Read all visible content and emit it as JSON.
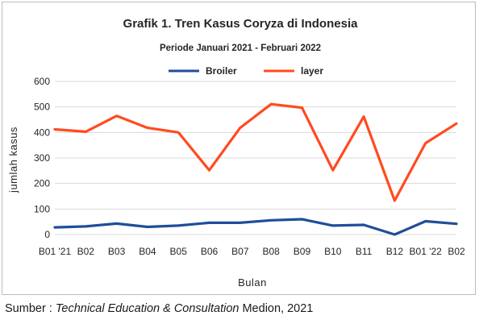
{
  "chart_data": {
    "type": "line",
    "title": "Grafik 1. Tren Kasus Coryza di Indonesia",
    "subtitle": "Periode Januari 2021 - Februari 2022",
    "xlabel": "Bulan",
    "ylabel": "jumlah kasus",
    "ylim": [
      0,
      600
    ],
    "yticks": [
      "0",
      "100",
      "200",
      "300",
      "400",
      "500",
      "600"
    ],
    "grid": true,
    "legend_position": "top",
    "categories": [
      "B01 '21",
      "B02",
      "B03",
      "B04",
      "B05",
      "B06",
      "B07",
      "B08",
      "B09",
      "B10",
      "B11",
      "B12",
      "B01 '22",
      "B02"
    ],
    "series": [
      {
        "name": "Broiler",
        "color": "#1f4e9a",
        "values": [
          28,
          32,
          43,
          30,
          35,
          46,
          46,
          56,
          60,
          35,
          38,
          0,
          52,
          42
        ]
      },
      {
        "name": "layer",
        "color": "#ff4b1f",
        "values": [
          412,
          403,
          465,
          418,
          400,
          252,
          418,
          511,
          497,
          252,
          462,
          133,
          358,
          435
        ]
      }
    ]
  },
  "source": {
    "prefix": "Sumber : ",
    "italic": "Technical Education & Consultation",
    "suffix": " Medion, 2021"
  }
}
